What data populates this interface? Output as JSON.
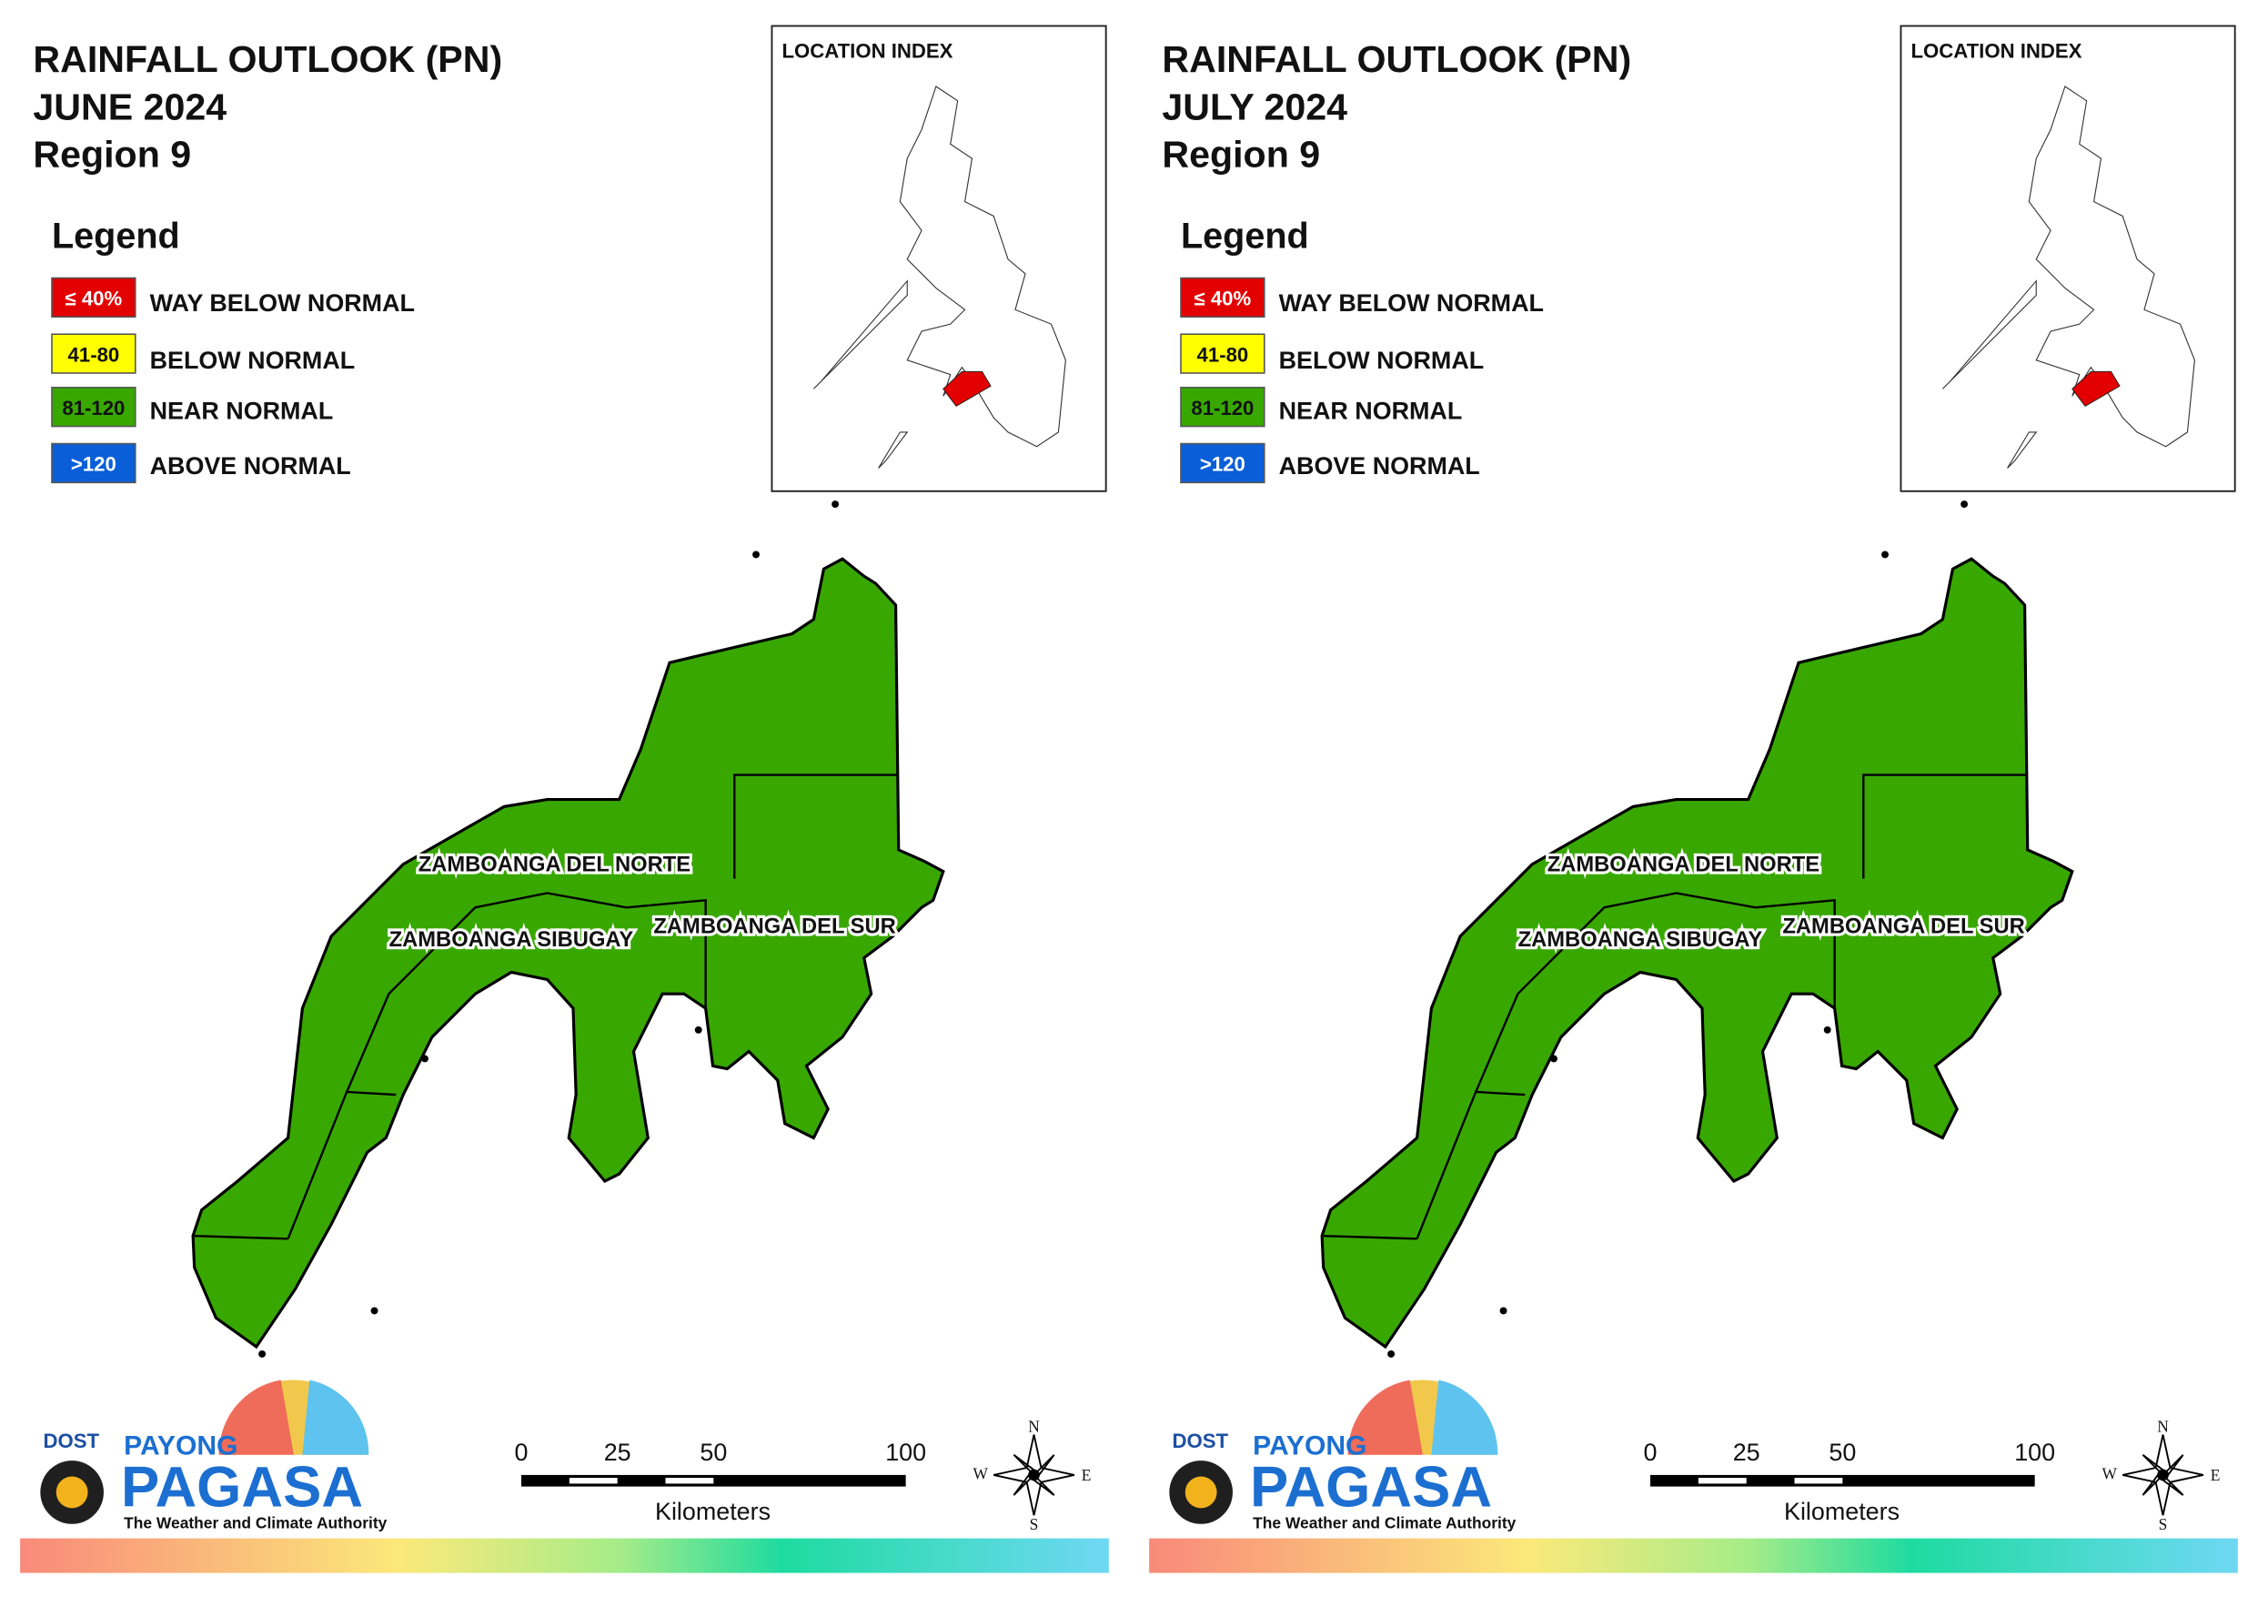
{
  "panels": [
    {
      "title": [
        "RAINFALL OUTLOOK (PN)",
        "JUNE 2024",
        "Region 9"
      ],
      "legend": {
        "title": "Legend",
        "items": [
          {
            "range": "≤ 40%",
            "label": "WAY BELOW NORMAL",
            "color": "#e30000"
          },
          {
            "range": "41-80",
            "label": "BELOW NORMAL",
            "color": "#ffff00"
          },
          {
            "range": "81-120",
            "label": "NEAR NORMAL",
            "color": "#38a800"
          },
          {
            "range": ">120",
            "label": "ABOVE NORMAL",
            "color": "#0a5fd8"
          }
        ]
      },
      "location_index": "LOCATION INDEX",
      "provinces": [
        "ZAMBOANGA DEL NORTE",
        "ZAMBOANGA SIBUGAY",
        "ZAMBOANGA DEL SUR"
      ],
      "scale": {
        "ticks": [
          0,
          25,
          50,
          100
        ],
        "unit": "Kilometers"
      },
      "compass": [
        "N",
        "E",
        "S",
        "W"
      ],
      "logo": {
        "agency": "DOST",
        "brand": "PAYONG",
        "name": "PAGASA",
        "tagline": "The Weather and Climate Authority"
      }
    },
    {
      "title": [
        "RAINFALL OUTLOOK (PN)",
        "JULY 2024",
        "Region 9"
      ],
      "legend": {
        "title": "Legend",
        "items": [
          {
            "range": "≤ 40%",
            "label": "WAY BELOW NORMAL",
            "color": "#e30000"
          },
          {
            "range": "41-80",
            "label": "BELOW NORMAL",
            "color": "#ffff00"
          },
          {
            "range": "81-120",
            "label": "NEAR NORMAL",
            "color": "#38a800"
          },
          {
            "range": ">120",
            "label": "ABOVE NORMAL",
            "color": "#0a5fd8"
          }
        ]
      },
      "location_index": "LOCATION INDEX",
      "provinces": [
        "ZAMBOANGA DEL NORTE",
        "ZAMBOANGA SIBUGAY",
        "ZAMBOANGA DEL SUR"
      ],
      "scale": {
        "ticks": [
          0,
          25,
          50,
          100
        ],
        "unit": "Kilometers"
      },
      "compass": [
        "N",
        "E",
        "S",
        "W"
      ],
      "logo": {
        "agency": "DOST",
        "brand": "PAYONG",
        "name": "PAGASA",
        "tagline": "The Weather and Climate Authority"
      }
    }
  ]
}
